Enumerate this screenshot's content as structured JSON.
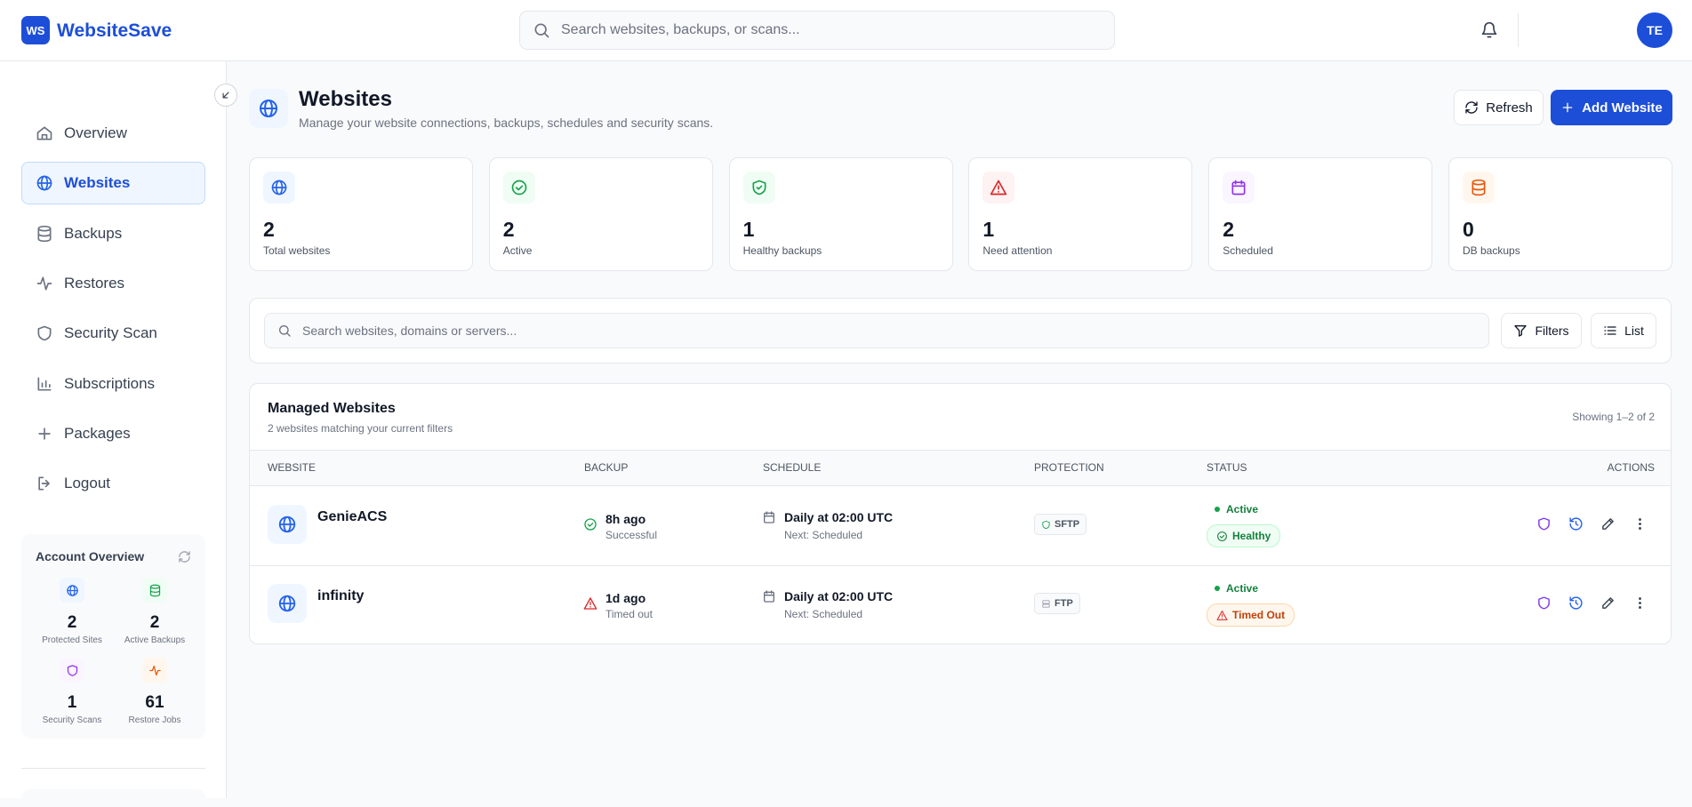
{
  "header": {
    "logo": "WS",
    "brand": "WebsiteSave",
    "search_placeholder": "Search websites, backups, or scans...",
    "avatar": "TE"
  },
  "sidebar": {
    "nav": [
      "Overview",
      "Websites",
      "Backups",
      "Restores",
      "Security Scan",
      "Subscriptions",
      "Packages",
      "Logout"
    ],
    "account_overview": {
      "title": "Account Overview",
      "items": [
        {
          "value": 2,
          "label": "Protected Sites"
        },
        {
          "value": 2,
          "label": "Active Backups"
        },
        {
          "value": 1,
          "label": "Security Scans"
        },
        {
          "value": 61,
          "label": "Restore Jobs"
        }
      ]
    }
  },
  "page": {
    "title": "Websites",
    "subtitle": "Manage your website connections, backups, schedules and security scans.",
    "refresh": "Refresh",
    "add": "Add Website"
  },
  "stats": [
    {
      "value": 2,
      "label": "Total websites"
    },
    {
      "value": 2,
      "label": "Active"
    },
    {
      "value": 1,
      "label": "Healthy backups"
    },
    {
      "value": 1,
      "label": "Need attention"
    },
    {
      "value": 2,
      "label": "Scheduled"
    },
    {
      "value": 0,
      "label": "DB backups"
    }
  ],
  "filters": {
    "search_placeholder": "Search websites, domains or servers...",
    "filters": "Filters",
    "list": "List"
  },
  "table": {
    "title": "Managed Websites",
    "subtitle": "2 websites matching your current filters",
    "showing": "Showing 1–2 of 2",
    "columns": [
      "WEBSITE",
      "BACKUP",
      "SCHEDULE",
      "PROTECTION",
      "STATUS",
      "ACTIONS"
    ],
    "rows": [
      {
        "name": "GenieACS",
        "backup": "8h ago",
        "backup_status": "Successful",
        "schedule": "Daily at 02:00 UTC",
        "next": "Next: Scheduled",
        "protection": "SFTP",
        "status": "Active",
        "health": "Healthy"
      },
      {
        "name": "infinity",
        "backup": "1d ago",
        "backup_status": "Timed out",
        "schedule": "Daily at 02:00 UTC",
        "next": "Next: Scheduled",
        "protection": "FTP",
        "status": "Active",
        "health": "Timed Out"
      }
    ]
  }
}
